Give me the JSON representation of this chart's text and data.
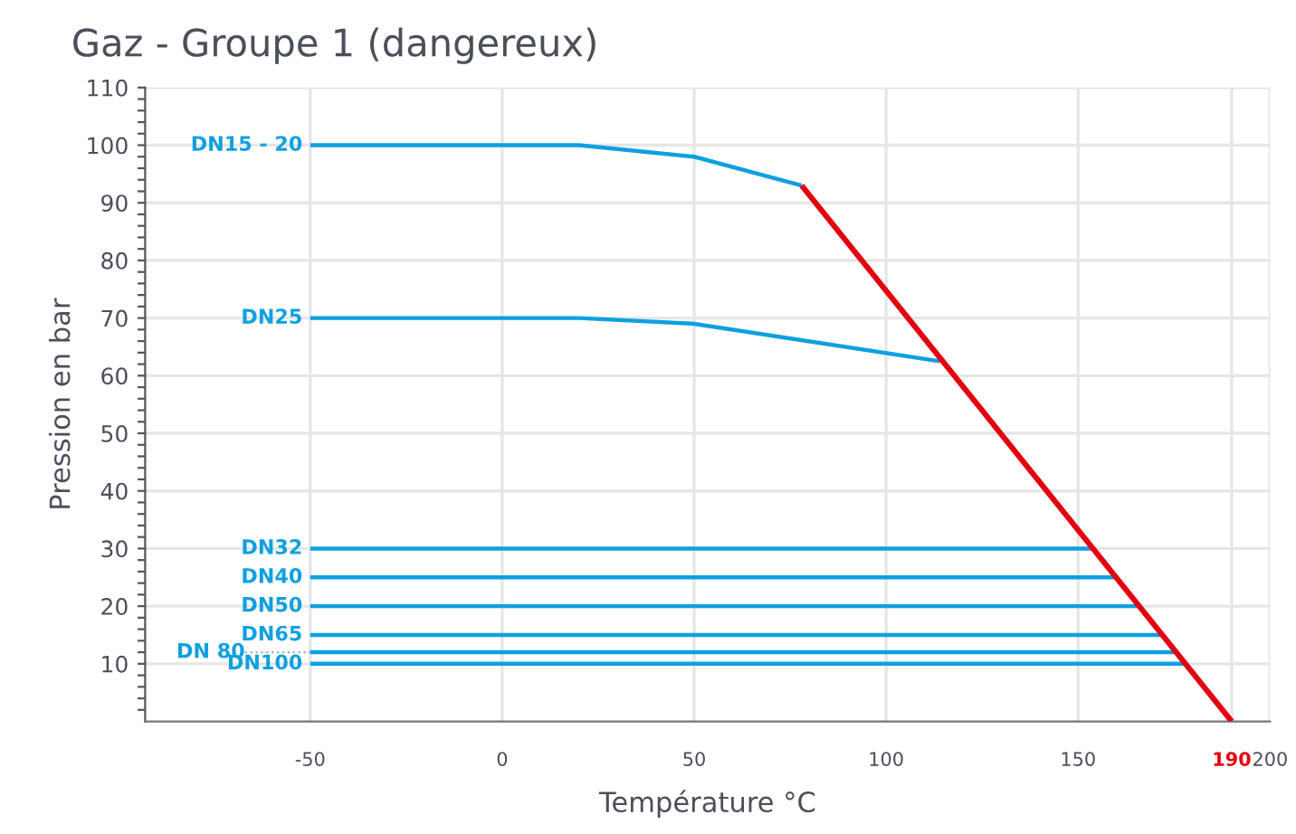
{
  "chart_data": {
    "type": "line",
    "title": "Gaz - Groupe 1 (dangereux)",
    "xlabel": "Température °C",
    "ylabel": "Pression en bar",
    "xlim": [
      -93,
      200
    ],
    "ylim": [
      0,
      110
    ],
    "xticks": [
      -50,
      0,
      50,
      100,
      150,
      190,
      200
    ],
    "yticks": [
      {
        "value": 2,
        "label": null
      },
      {
        "value": 4,
        "label": null
      },
      {
        "value": 6,
        "label": null
      },
      {
        "value": 8,
        "label": null
      },
      10,
      {
        "value": 12,
        "label": null
      },
      {
        "value": 14,
        "label": null
      },
      {
        "value": 16,
        "label": null
      },
      {
        "value": 18,
        "label": null
      },
      20,
      {
        "value": 22,
        "label": null
      },
      {
        "value": 24,
        "label": null
      },
      {
        "value": 26,
        "label": null
      },
      {
        "value": 28,
        "label": null
      },
      30,
      {
        "value": 32,
        "label": null
      },
      {
        "value": 34,
        "label": null
      },
      {
        "value": 36,
        "label": null
      },
      {
        "value": 38,
        "label": null
      },
      40,
      {
        "value": 42,
        "label": null
      },
      {
        "value": 44,
        "label": null
      },
      {
        "value": 46,
        "label": null
      },
      {
        "value": 48,
        "label": null
      },
      50,
      {
        "value": 52,
        "label": null
      },
      {
        "value": 54,
        "label": null
      },
      {
        "value": 56,
        "label": null
      },
      {
        "value": 58,
        "label": null
      },
      60,
      {
        "value": 62,
        "label": null
      },
      {
        "value": 64,
        "label": null
      },
      {
        "value": 66,
        "label": null
      },
      {
        "value": 68,
        "label": null
      },
      70,
      {
        "value": 72,
        "label": null
      },
      {
        "value": 74,
        "label": null
      },
      {
        "value": 76,
        "label": null
      },
      {
        "value": 78,
        "label": null
      },
      80,
      {
        "value": 82,
        "label": null
      },
      {
        "value": 84,
        "label": null
      },
      {
        "value": 86,
        "label": null
      },
      {
        "value": 88,
        "label": null
      },
      90,
      {
        "value": 92,
        "label": null
      },
      {
        "value": 94,
        "label": null
      },
      {
        "value": 96,
        "label": null
      },
      {
        "value": 98,
        "label": null
      },
      100,
      {
        "value": 102,
        "label": null
      },
      {
        "value": 104,
        "label": null
      },
      {
        "value": 106,
        "label": null
      },
      {
        "value": 108,
        "label": null
      },
      110
    ],
    "grid": true,
    "legend": false,
    "marker": "none",
    "line_style": "solid",
    "series": [
      {
        "name": "DN15 - 20",
        "color": "#0ea0e0",
        "x": [
          -50,
          20,
          50,
          78
        ],
        "values": [
          100,
          100,
          98,
          93
        ]
      },
      {
        "name": "DN25",
        "color": "#0ea0e0",
        "x": [
          -50,
          20,
          50,
          114
        ],
        "values": [
          70,
          70,
          69,
          62.5
        ]
      },
      {
        "name": "DN32",
        "color": "#0ea0e0",
        "x": [
          -50,
          154
        ],
        "values": [
          30,
          30
        ]
      },
      {
        "name": "DN40",
        "color": "#0ea0e0",
        "x": [
          -50,
          160
        ],
        "values": [
          25,
          25
        ]
      },
      {
        "name": "DN50",
        "color": "#0ea0e0",
        "x": [
          -50,
          166
        ],
        "values": [
          20,
          20
        ]
      },
      {
        "name": "DN65",
        "color": "#0ea0e0",
        "x": [
          -50,
          172
        ],
        "values": [
          15,
          15
        ]
      },
      {
        "name": "DN 80",
        "color": "#0ea0e0",
        "x": [
          -50,
          175.5
        ],
        "values": [
          12,
          12
        ]
      },
      {
        "name": "DN100",
        "color": "#0ea0e0",
        "x": [
          -50,
          178
        ],
        "values": [
          10,
          10
        ]
      },
      {
        "color": "#e3000f",
        "x": [
          78,
          190
        ],
        "values": [
          93,
          0
        ]
      }
    ]
  }
}
